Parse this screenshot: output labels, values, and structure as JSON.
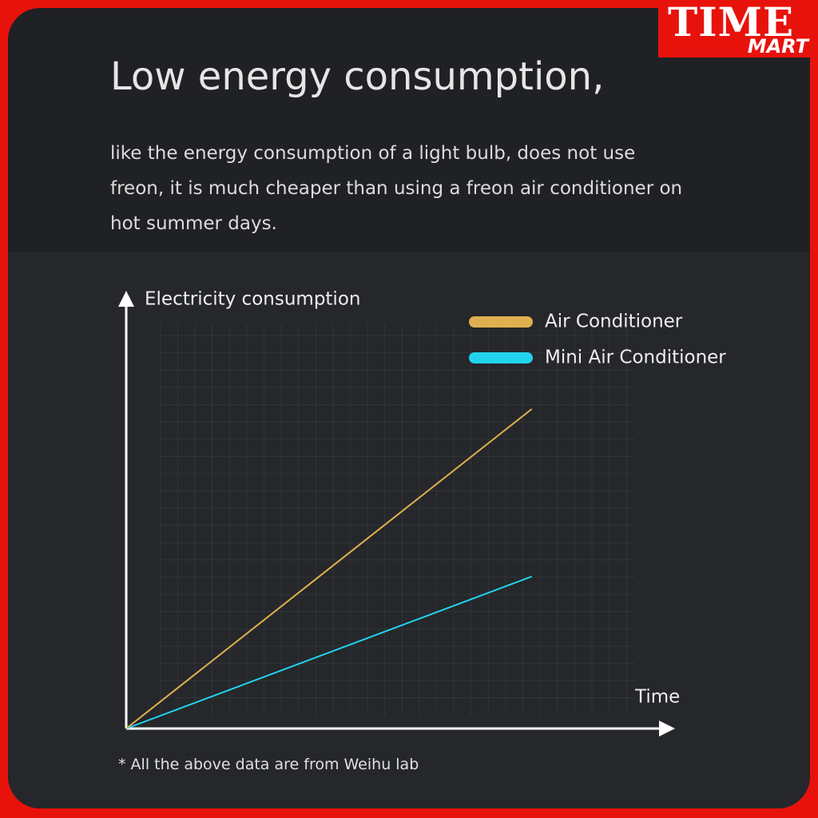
{
  "brand": {
    "line1": "TIME",
    "line2": "MART"
  },
  "header": {
    "title": "Low energy consumption,",
    "body": "like the energy consumption of a light bulb, does not use freon, it is much cheaper than using a freon air conditioner on hot summer days."
  },
  "chart_data": {
    "type": "line",
    "y_label": "Electricity consumption",
    "x_label": "Time",
    "x": [
      0,
      23.5
    ],
    "series": [
      {
        "name": "Mini Air Conditioner",
        "color": "#22d3ee",
        "values": [
          0,
          8.8
        ]
      },
      {
        "name": "Air Conditioner",
        "color": "#e0b050",
        "values": [
          0,
          18.5
        ]
      }
    ],
    "xlim": [
      0,
      31.8
    ],
    "ylim": [
      0,
      25.3
    ],
    "grid": true,
    "legend": "top-right"
  },
  "footnote": "*  All the above data are from Weihu lab"
}
